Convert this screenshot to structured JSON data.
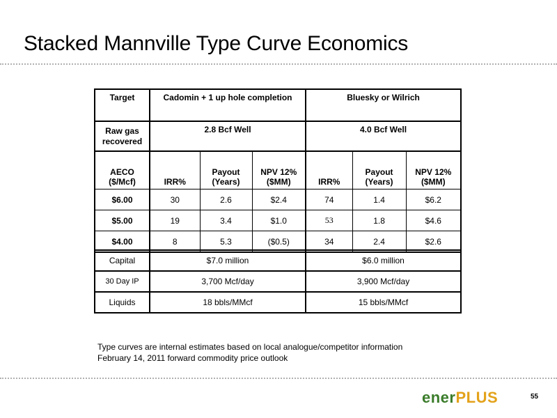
{
  "title": "Stacked Mannville Type Curve Economics",
  "econ": {
    "target_label": "Target",
    "zone1": "Cadomin + 1 up hole completion",
    "zone2": "Bluesky or Wilrich",
    "raw_gas_label": "Raw gas recovered",
    "well1": "2.8 Bcf Well",
    "well2": "4.0 Bcf Well",
    "columns": {
      "aeco_line1": "AECO",
      "aeco_line2": "($/Mcf)",
      "irr": "IRR%",
      "payout_line1": "Payout",
      "payout_line2": "(Years)",
      "npv_line1": "NPV 12%",
      "npv_line2": "($MM)"
    },
    "rows": [
      {
        "price": "$6.00",
        "irr1": "30",
        "payout1": "2.6",
        "npv1": "$2.4",
        "irr2": "74",
        "payout2": "1.4",
        "npv2": "$6.2"
      },
      {
        "price": "$5.00",
        "irr1": "19",
        "payout1": "3.4",
        "npv1": "$1.0",
        "irr2": "53",
        "payout2": "1.8",
        "npv2": "$4.6"
      },
      {
        "price": "$4.00",
        "irr1": "8",
        "payout1": "5.3",
        "npv1": "($0.5)",
        "irr2": "34",
        "payout2": "2.4",
        "npv2": "$2.6"
      }
    ]
  },
  "capital": {
    "rows": [
      {
        "label": "Capital",
        "val1": "$7.0 million",
        "val2": "$6.0 million"
      },
      {
        "label": "30 Day IP",
        "val1": "3,700 Mcf/day",
        "val2": "3,900 Mcf/day"
      },
      {
        "label": "Liquids",
        "val1": "18 bbls/MMcf",
        "val2": "15 bbls/MMcf"
      }
    ]
  },
  "footnotes": [
    "Type curves are internal estimates based on local analogue/competitor information",
    "February 14, 2011 forward commodity price outlook"
  ],
  "logo": {
    "part1": "ener",
    "part2": "PLUS"
  },
  "page_number": "55"
}
